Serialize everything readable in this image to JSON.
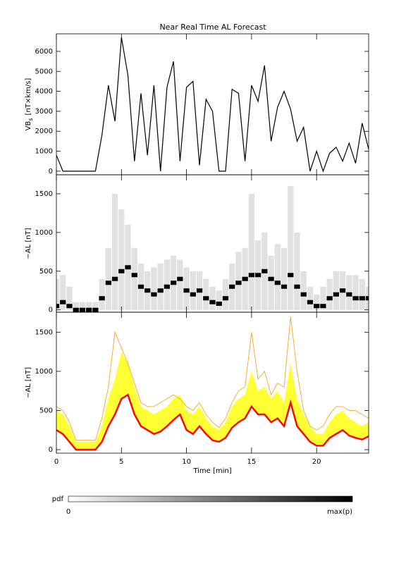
{
  "chart_data": [
    {
      "type": "line",
      "title": "Near Real Time AL Forecast",
      "ylabel": {
        "main": "VB",
        "sub": "s",
        "unit": "[nT×km/s]"
      },
      "ylim": [
        -180,
        6880
      ],
      "yticks": [
        0,
        1000,
        2000,
        3000,
        4000,
        5000,
        6000
      ],
      "x": [
        0,
        0.5,
        1,
        1.5,
        2,
        2.5,
        3,
        3.5,
        4,
        4.5,
        5,
        5.5,
        6,
        6.5,
        7,
        7.5,
        8,
        8.5,
        9,
        9.5,
        10,
        10.5,
        11,
        11.5,
        12,
        12.5,
        13,
        13.5,
        14,
        14.5,
        15,
        15.5,
        16,
        16.5,
        17,
        17.5,
        18,
        18.5,
        19,
        19.5,
        20,
        20.5,
        21,
        21.5,
        22,
        22.5,
        23,
        23.5,
        24
      ],
      "series": [
        {
          "color": "#000000",
          "values": [
            800,
            0,
            0,
            0,
            0,
            0,
            0,
            1800,
            4300,
            2500,
            6700,
            4800,
            500,
            3900,
            800,
            4300,
            0,
            4200,
            5500,
            500,
            4200,
            4500,
            300,
            3600,
            3000,
            0,
            0,
            4100,
            3900,
            500,
            4300,
            3500,
            5300,
            1500,
            3200,
            4000,
            3100,
            1500,
            2200,
            0,
            1000,
            0,
            900,
            1200,
            500,
            1400,
            400,
            2400,
            1100
          ]
        }
      ]
    },
    {
      "type": "density",
      "ylabel": "−AL [nT]",
      "ylim": [
        -30,
        1745
      ],
      "yticks": [
        0,
        500,
        1000,
        1500
      ],
      "x": [
        0,
        0.5,
        1,
        1.5,
        2,
        2.5,
        3,
        3.5,
        4,
        4.5,
        5,
        5.5,
        6,
        6.5,
        7,
        7.5,
        8,
        8.5,
        9,
        9.5,
        10,
        10.5,
        11,
        11.5,
        12,
        12.5,
        13,
        13.5,
        14,
        14.5,
        15,
        15.5,
        16,
        16.5,
        17,
        17.5,
        18,
        18.5,
        19,
        19.5,
        20,
        20.5,
        21,
        21.5,
        22,
        22.5,
        23,
        23.5,
        24
      ],
      "series": [
        {
          "color": "#c8c8c8",
          "values": [
            400,
            450,
            300,
            100,
            100,
            100,
            100,
            400,
            800,
            1500,
            1300,
            1100,
            800,
            600,
            500,
            550,
            600,
            650,
            700,
            650,
            550,
            500,
            500,
            400,
            300,
            250,
            400,
            600,
            750,
            800,
            1500,
            900,
            1000,
            700,
            850,
            800,
            1600,
            1000,
            500,
            300,
            200,
            300,
            400,
            500,
            500,
            450,
            450,
            400,
            300
          ]
        },
        {
          "color": "#000000",
          "values": [
            50,
            100,
            50,
            0,
            0,
            0,
            0,
            150,
            350,
            400,
            500,
            550,
            450,
            300,
            250,
            200,
            250,
            300,
            350,
            400,
            250,
            200,
            250,
            150,
            100,
            80,
            150,
            300,
            350,
            400,
            450,
            450,
            500,
            400,
            350,
            300,
            450,
            300,
            200,
            100,
            50,
            50,
            150,
            200,
            250,
            200,
            150,
            150,
            150
          ]
        }
      ]
    },
    {
      "type": "forecast",
      "ylabel": "−AL [nT]",
      "xlabel": "Time [min]",
      "ylim": [
        -45,
        1755
      ],
      "yticks": [
        0,
        500,
        1000,
        1500
      ],
      "xlim": [
        0,
        24
      ],
      "xticks": [
        0,
        5,
        10,
        15,
        20
      ],
      "x": [
        0,
        0.5,
        1,
        1.5,
        2,
        2.5,
        3,
        3.5,
        4,
        4.5,
        5,
        5.5,
        6,
        6.5,
        7,
        7.5,
        8,
        8.5,
        9,
        9.5,
        10,
        10.5,
        11,
        11.5,
        12,
        12.5,
        13,
        13.5,
        14,
        14.5,
        15,
        15.5,
        16,
        16.5,
        17,
        17.5,
        18,
        18.5,
        19,
        19.5,
        20,
        20.5,
        21,
        21.5,
        22,
        22.5,
        23,
        23.5,
        24
      ],
      "series": [
        {
          "color": "#ffff33",
          "values": [
            500,
            450,
            300,
            100,
            100,
            100,
            100,
            300,
            650,
            900,
            1250,
            1100,
            800,
            550,
            500,
            450,
            500,
            550,
            650,
            700,
            500,
            450,
            550,
            400,
            300,
            250,
            350,
            550,
            650,
            700,
            1000,
            750,
            800,
            650,
            750,
            600,
            1100,
            650,
            450,
            300,
            200,
            200,
            350,
            450,
            500,
            400,
            350,
            300,
            350
          ]
        },
        {
          "color": "#f5a623",
          "values": [
            550,
            500,
            350,
            120,
            120,
            120,
            120,
            400,
            800,
            1500,
            1300,
            1100,
            850,
            600,
            550,
            550,
            600,
            650,
            700,
            650,
            550,
            500,
            600,
            450,
            350,
            280,
            400,
            600,
            750,
            800,
            1500,
            900,
            1000,
            700,
            850,
            800,
            1700,
            1000,
            500,
            300,
            250,
            300,
            450,
            550,
            550,
            500,
            500,
            450,
            400
          ]
        },
        {
          "color": "#ff0000",
          "values": [
            250,
            200,
            100,
            0,
            0,
            0,
            0,
            100,
            300,
            450,
            650,
            700,
            450,
            300,
            250,
            200,
            230,
            300,
            380,
            450,
            250,
            200,
            300,
            200,
            120,
            100,
            150,
            280,
            350,
            400,
            550,
            450,
            450,
            350,
            400,
            300,
            600,
            300,
            200,
            100,
            50,
            50,
            150,
            200,
            250,
            180,
            150,
            130,
            170
          ]
        }
      ]
    }
  ],
  "colorbar": {
    "label": "pdf",
    "min_label": "0",
    "max_label": "max(p)"
  }
}
